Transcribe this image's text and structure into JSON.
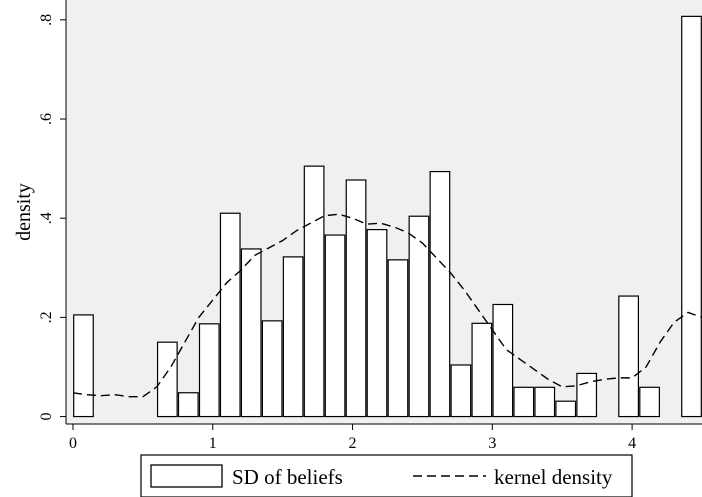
{
  "chart_data": {
    "type": "bar",
    "xlabel": "",
    "ylabel": "density",
    "xlim": [
      -0.05,
      4.5
    ],
    "ylim": [
      -0.015,
      0.84
    ],
    "xticks": [
      0,
      1,
      2,
      3,
      4
    ],
    "xtick_labels": [
      "0",
      "1",
      "2",
      "3",
      "4"
    ],
    "yticks": [
      0,
      0.2,
      0.4,
      0.6,
      0.8
    ],
    "ytick_labels": [
      "0",
      ".2",
      ".4",
      ".6",
      ".8"
    ],
    "grid": false,
    "legend_position": "bottom",
    "background": "#f0f0f0",
    "series": [
      {
        "name": "SD of beliefs",
        "type": "bar",
        "bar_width": 0.14,
        "x": [
          0.075,
          0.675,
          0.825,
          0.975,
          1.125,
          1.275,
          1.425,
          1.575,
          1.725,
          1.875,
          2.025,
          2.175,
          2.325,
          2.475,
          2.625,
          2.775,
          2.925,
          3.075,
          3.225,
          3.375,
          3.525,
          3.675,
          3.975,
          4.125,
          4.425
        ],
        "values": [
          0.205,
          0.15,
          0.048,
          0.187,
          0.41,
          0.338,
          0.193,
          0.322,
          0.505,
          0.366,
          0.477,
          0.377,
          0.316,
          0.404,
          0.494,
          0.104,
          0.188,
          0.226,
          0.059,
          0.059,
          0.031,
          0.087,
          0.243,
          0.059,
          0.807
        ]
      },
      {
        "name": "kernel density",
        "type": "line",
        "style": "dashed",
        "x": [
          0.0,
          0.1,
          0.2,
          0.3,
          0.4,
          0.5,
          0.6,
          0.7,
          0.8,
          0.9,
          1.0,
          1.1,
          1.2,
          1.3,
          1.4,
          1.5,
          1.6,
          1.7,
          1.8,
          1.9,
          2.0,
          2.1,
          2.2,
          2.3,
          2.4,
          2.5,
          2.6,
          2.7,
          2.8,
          2.9,
          3.0,
          3.1,
          3.2,
          3.3,
          3.4,
          3.5,
          3.6,
          3.7,
          3.8,
          3.9,
          4.0,
          4.1,
          4.2,
          4.3,
          4.4,
          4.5
        ],
        "values": [
          0.048,
          0.044,
          0.042,
          0.044,
          0.04,
          0.04,
          0.06,
          0.1,
          0.15,
          0.2,
          0.235,
          0.27,
          0.295,
          0.325,
          0.34,
          0.355,
          0.375,
          0.39,
          0.405,
          0.408,
          0.4,
          0.388,
          0.39,
          0.382,
          0.37,
          0.35,
          0.32,
          0.29,
          0.255,
          0.215,
          0.175,
          0.135,
          0.115,
          0.095,
          0.075,
          0.06,
          0.062,
          0.07,
          0.075,
          0.078,
          0.078,
          0.1,
          0.15,
          0.19,
          0.21,
          0.2
        ]
      }
    ]
  },
  "legend": {
    "items": [
      {
        "label": "SD of beliefs",
        "symbol": "box"
      },
      {
        "label": "kernel density",
        "symbol": "dashed-line"
      }
    ]
  }
}
